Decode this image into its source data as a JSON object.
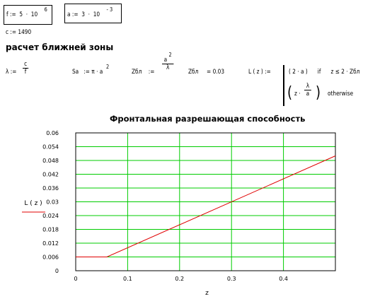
{
  "definitions": {
    "f_lhs": "f",
    "f_assign": ":=",
    "f_mant": "5",
    "f_dot": "·",
    "f_base": "10",
    "f_exp": "6",
    "a_lhs": "a",
    "a_assign": ":=",
    "a_mant": "3",
    "a_dot": "·",
    "a_base": "10",
    "a_exp": "- 3",
    "c_line": "c := 1490"
  },
  "section_heading": "расчет ближней зоны",
  "formulas": {
    "lambda_lhs": "λ :=",
    "lambda_num": "c",
    "lambda_den": "f",
    "sa_lhs": "Sa",
    "sa_rhs": ":= π · a",
    "sa_exp": "2",
    "zbl_lhs": "Zбл",
    "zbl_assign": ":=",
    "zbl_num": "a",
    "zbl_num_exp": "2",
    "zbl_den": "λ",
    "zbl_val_lhs": "Zбл",
    "zbl_val_rhs": "= 0.03",
    "L_lhs": "L ( z ) :=",
    "case1_expr": "( 2 · a )",
    "case1_if": "if",
    "case1_cond": "z ≤ 2 · Zбл",
    "case2_lpar": "(",
    "case2_z": "z ·",
    "case2_num": "λ",
    "case2_den": "a",
    "case2_rpar": ")",
    "case2_otherwise": "otherwise"
  },
  "chart_data": {
    "type": "line",
    "title": "Фронтальная разрешающая способность",
    "xlabel": "z",
    "ylabel": "L ( z )",
    "xlim": [
      0,
      0.5
    ],
    "ylim": [
      0,
      0.06
    ],
    "xticks": [
      "0",
      "0.1",
      "0.2",
      "0.3",
      "0.4"
    ],
    "xtick_values": [
      0,
      0.1,
      0.2,
      0.3,
      0.4
    ],
    "yticks": [
      "0",
      "0.006",
      "0.012",
      "0.018",
      "0.024",
      "0.03",
      "0.036",
      "0.042",
      "0.048",
      "0.054",
      "0.06"
    ],
    "ytick_values": [
      0,
      0.006,
      0.012,
      0.018,
      0.024,
      0.03,
      0.036,
      0.042,
      0.048,
      0.054,
      0.06
    ],
    "grid": true,
    "series": [
      {
        "name": "L ( z )",
        "color": "#e00000",
        "x": [
          0,
          0.06,
          0.5
        ],
        "y": [
          0.006,
          0.006,
          0.05
        ]
      }
    ],
    "grid_color": "#00cc00"
  }
}
